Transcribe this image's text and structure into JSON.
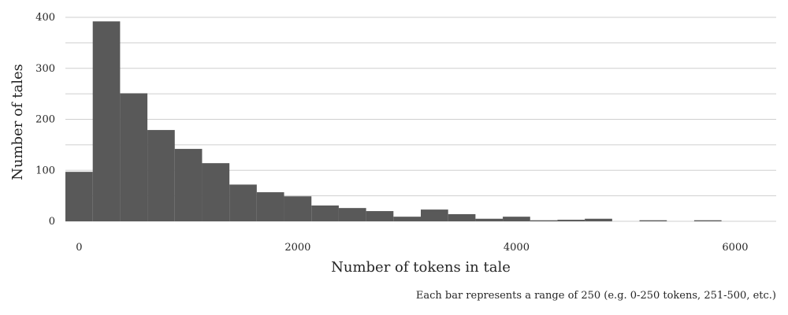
{
  "chart_data": {
    "type": "bar",
    "xlabel": "Number of tokens in tale",
    "ylabel": "Number of tales",
    "note": "Each bar represents a range of 250 (e.g. 0-250 tokens, 251-500, etc.)",
    "bin_width": 250,
    "x": [
      0,
      250,
      500,
      750,
      1000,
      1250,
      1500,
      1750,
      2000,
      2250,
      2500,
      2750,
      3000,
      3250,
      3500,
      3750,
      4000,
      4250,
      4500,
      4750,
      5000,
      5250,
      5500,
      5750,
      6000
    ],
    "values": [
      97,
      392,
      251,
      179,
      142,
      114,
      72,
      57,
      49,
      31,
      26,
      20,
      9,
      23,
      14,
      5,
      9,
      2,
      3,
      5,
      0,
      2,
      0,
      2,
      0
    ],
    "xticks": [
      0,
      2000,
      4000,
      6000
    ],
    "yticks": [
      0,
      100,
      200,
      300,
      400
    ],
    "xlim": [
      -125,
      6375
    ],
    "ylim": [
      0,
      400
    ],
    "grid": true,
    "legend": "none"
  }
}
